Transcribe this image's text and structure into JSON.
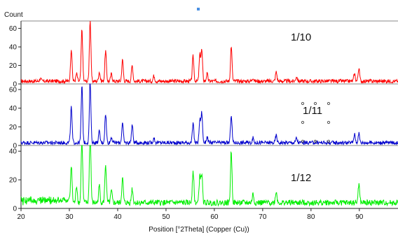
{
  "chart_data": {
    "type": "line",
    "ylabel": "Count",
    "xlabel": "Position [°2Theta] (Copper (Cu))",
    "xlim": [
      20,
      98
    ],
    "xticks": [
      20,
      30,
      40,
      50,
      60,
      70,
      80,
      90
    ],
    "grid": false,
    "panels": [
      {
        "label": "1/10",
        "color": "#ff0000",
        "ylim": [
          0,
          68
        ],
        "yticks": [
          0,
          20,
          40,
          60
        ],
        "baseline": 3,
        "peaks": [
          [
            24.0,
            3
          ],
          [
            30.4,
            35
          ],
          [
            31.5,
            8
          ],
          [
            32.6,
            56
          ],
          [
            34.3,
            66
          ],
          [
            36.2,
            10
          ],
          [
            37.5,
            33
          ],
          [
            38.7,
            8
          ],
          [
            41.0,
            23
          ],
          [
            43.0,
            17
          ],
          [
            47.5,
            6
          ],
          [
            55.6,
            27
          ],
          [
            57.0,
            28
          ],
          [
            57.4,
            33
          ],
          [
            58.5,
            8
          ],
          [
            63.5,
            38
          ],
          [
            68.0,
            4
          ],
          [
            72.8,
            10
          ],
          [
            77.0,
            5
          ],
          [
            89.0,
            8
          ],
          [
            89.9,
            14
          ]
        ]
      },
      {
        "label": "1/11",
        "color": "#0000cc",
        "ylim": [
          0,
          66
        ],
        "yticks": [
          0,
          20,
          40,
          60
        ],
        "baseline": 3,
        "peaks": [
          [
            30.4,
            38
          ],
          [
            32.6,
            61
          ],
          [
            34.3,
            66
          ],
          [
            36.2,
            12
          ],
          [
            37.5,
            31
          ],
          [
            38.7,
            6
          ],
          [
            41.0,
            21
          ],
          [
            43.0,
            19
          ],
          [
            47.5,
            5
          ],
          [
            55.6,
            20
          ],
          [
            57.0,
            24
          ],
          [
            57.4,
            32
          ],
          [
            58.5,
            6
          ],
          [
            63.5,
            30
          ],
          [
            68.0,
            5
          ],
          [
            72.8,
            8
          ],
          [
            77.0,
            5
          ],
          [
            89.0,
            9
          ],
          [
            89.9,
            10
          ]
        ]
      },
      {
        "label": "1/12",
        "color": "#00ee00",
        "ylim": [
          0,
          44
        ],
        "yticks": [
          0,
          20,
          40
        ],
        "baseline": 4,
        "peaks": [
          [
            30.4,
            27
          ],
          [
            31.5,
            12
          ],
          [
            32.6,
            45
          ],
          [
            34.3,
            52
          ],
          [
            36.2,
            12
          ],
          [
            37.5,
            27
          ],
          [
            38.7,
            8
          ],
          [
            41.0,
            17
          ],
          [
            43.0,
            10
          ],
          [
            55.6,
            23
          ],
          [
            57.0,
            19
          ],
          [
            57.4,
            20
          ],
          [
            63.5,
            36
          ],
          [
            68.0,
            6
          ],
          [
            72.8,
            8
          ],
          [
            89.9,
            13
          ]
        ]
      }
    ]
  }
}
